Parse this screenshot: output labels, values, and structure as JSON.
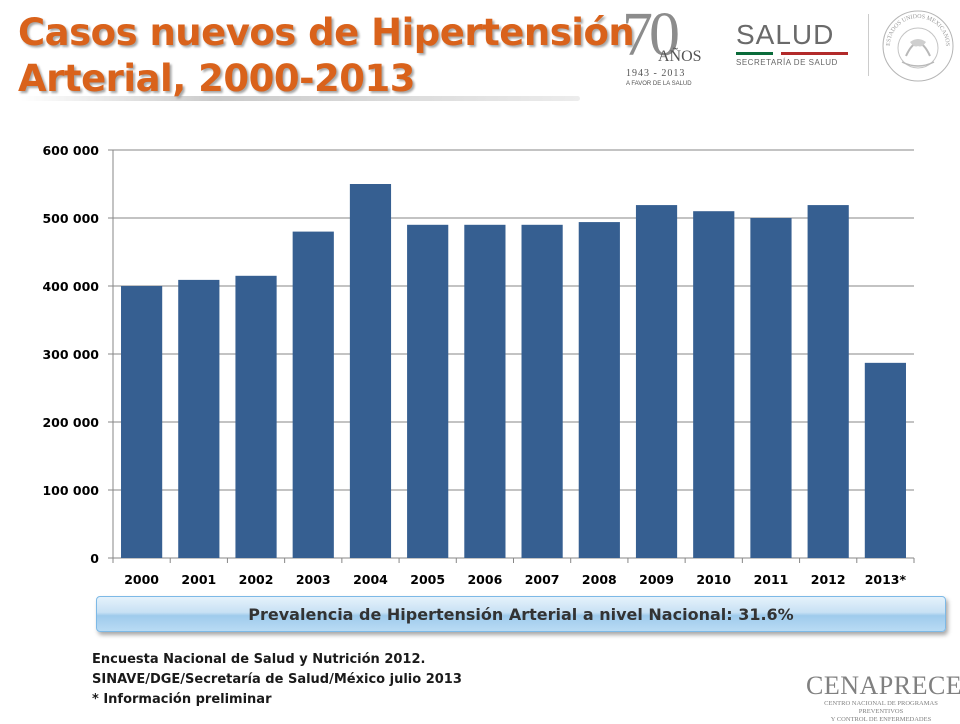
{
  "title": {
    "line1": "Casos nuevos de Hipertensión",
    "line2": "Arterial, 2000-2013"
  },
  "logo_70": {
    "number": "70",
    "anos": "AÑOS",
    "years": "1943 - 2013",
    "tagline": "A FAVOR DE LA SALUD"
  },
  "logo_salud": {
    "name": "SALUD",
    "subtitle": "SECRETARÍA DE SALUD"
  },
  "seal": {
    "text": "ESTADOS UNIDOS MEXICANOS"
  },
  "chart_data": {
    "type": "bar",
    "title": "",
    "xlabel": "",
    "ylabel": "",
    "categories": [
      "2000",
      "2001",
      "2002",
      "2003",
      "2004",
      "2005",
      "2006",
      "2007",
      "2008",
      "2009",
      "2010",
      "2011",
      "2012",
      "2013*"
    ],
    "values": [
      400000,
      409000,
      415000,
      480000,
      550000,
      490000,
      490000,
      490000,
      494000,
      519000,
      510000,
      500000,
      519000,
      287000
    ],
    "ylim": [
      0,
      600000
    ],
    "yticks": [
      0,
      100000,
      200000,
      300000,
      400000,
      500000,
      600000
    ],
    "ytick_labels": [
      "0",
      "100 000",
      "200 000",
      "300 000",
      "400 000",
      "500 000",
      "600 000"
    ],
    "grid": true,
    "legend": "none",
    "bar_color": "#365f91"
  },
  "banner": {
    "text": "Prevalencia de Hipertensión Arterial a nivel Nacional: 31.6%"
  },
  "footer": {
    "line1": "Encuesta Nacional de Salud y Nutrición 2012.",
    "line2": "SINAVE/DGE/Secretaría de Salud/México julio 2013",
    "line3": "* Información preliminar"
  },
  "logo_cenaprece": {
    "name": "CENAPRECE",
    "subtitle1": "CENTRO NACIONAL DE PROGRAMAS PREVENTIVOS",
    "subtitle2": "Y CONTROL DE ENFERMEDADES"
  },
  "colors": {
    "title": "#d9621b",
    "bars": "#365f91",
    "banner": "#b9dbf4"
  }
}
